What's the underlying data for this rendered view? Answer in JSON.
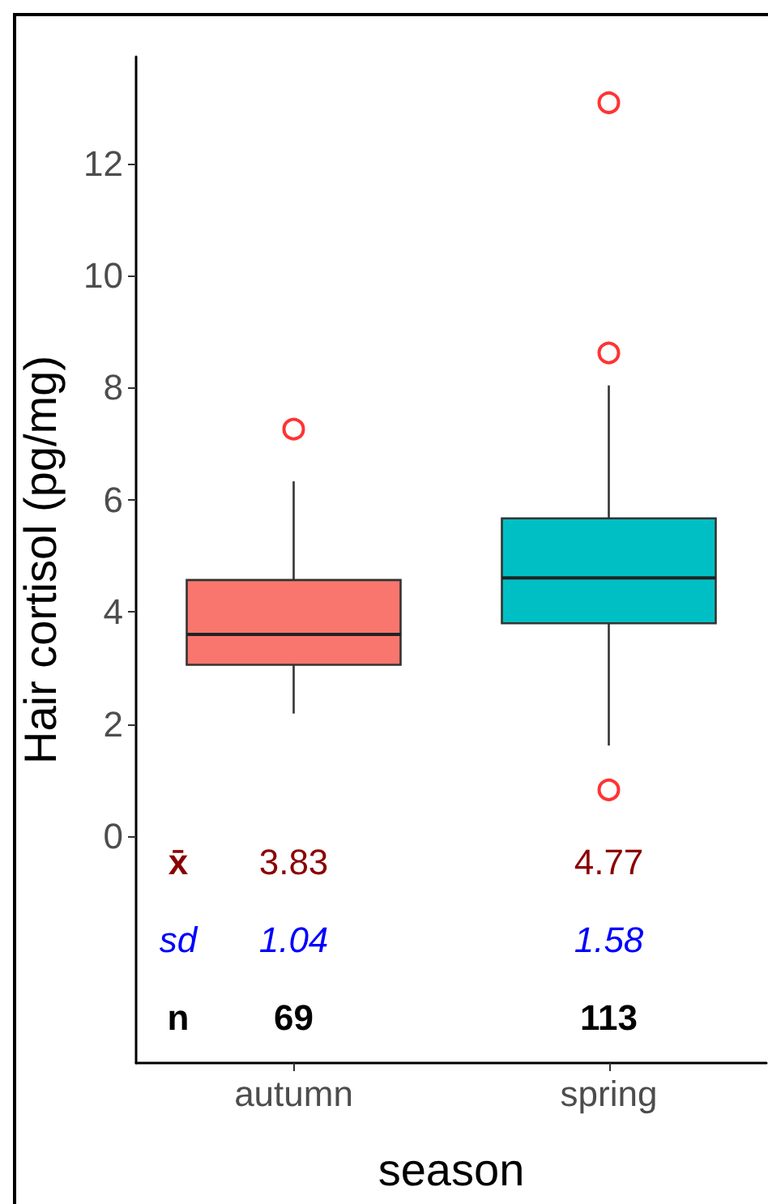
{
  "chart_data": {
    "type": "box",
    "categories": [
      "autumn",
      "spring"
    ],
    "xlabel": "season",
    "ylabel": "Hair cortisol (pg/mg)",
    "ylim": [
      -4.04,
      13.9
    ],
    "yticks": [
      0,
      2,
      4,
      6,
      8,
      10,
      12
    ],
    "grid": false,
    "series": [
      {
        "type": "box",
        "colors": [
          "#f8766d",
          "#00bfc4"
        ],
        "boxes": [
          {
            "low": 2.19,
            "q1": 3.06,
            "median": 3.6,
            "q3": 4.57,
            "high": 6.33
          },
          {
            "low": 1.62,
            "q1": 3.8,
            "median": 4.61,
            "q3": 5.67,
            "high": 8.04
          }
        ]
      },
      {
        "type": "scatter",
        "x": [
          "autumn",
          "spring",
          "spring",
          "spring"
        ],
        "values": [
          7.26,
          13.08,
          8.62,
          0.83
        ],
        "color": "#ff0000",
        "marker": "circle"
      }
    ],
    "annotations": [
      "x̄",
      "3.83",
      "4.77",
      "sd",
      "1.04",
      "1.58",
      "n",
      "69",
      "113"
    ]
  }
}
